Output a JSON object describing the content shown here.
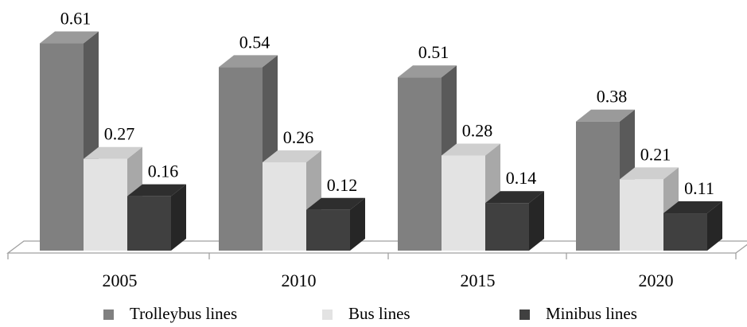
{
  "chart_data": {
    "type": "bar",
    "title": "",
    "xlabel": "",
    "ylabel": "",
    "categories": [
      "2005",
      "2010",
      "2015",
      "2020"
    ],
    "series": [
      {
        "name": "Trolleybus lines",
        "values": [
          0.61,
          0.54,
          0.51,
          0.38
        ],
        "color": "#808080",
        "top": "#9a9a9a",
        "side": "#5a5a5a"
      },
      {
        "name": "Bus lines",
        "values": [
          0.27,
          0.26,
          0.28,
          0.21
        ],
        "color": "#e3e3e3",
        "top": "#cfcfcf",
        "side": "#a8a8a8"
      },
      {
        "name": "Minibus lines",
        "values": [
          0.16,
          0.12,
          0.14,
          0.11
        ],
        "color": "#404040",
        "top": "#2e2e2e",
        "side": "#262626"
      }
    ],
    "ylim": [
      0,
      0.7
    ],
    "grid": false,
    "style": "3d-column",
    "legend": {
      "position": "bottom"
    }
  }
}
